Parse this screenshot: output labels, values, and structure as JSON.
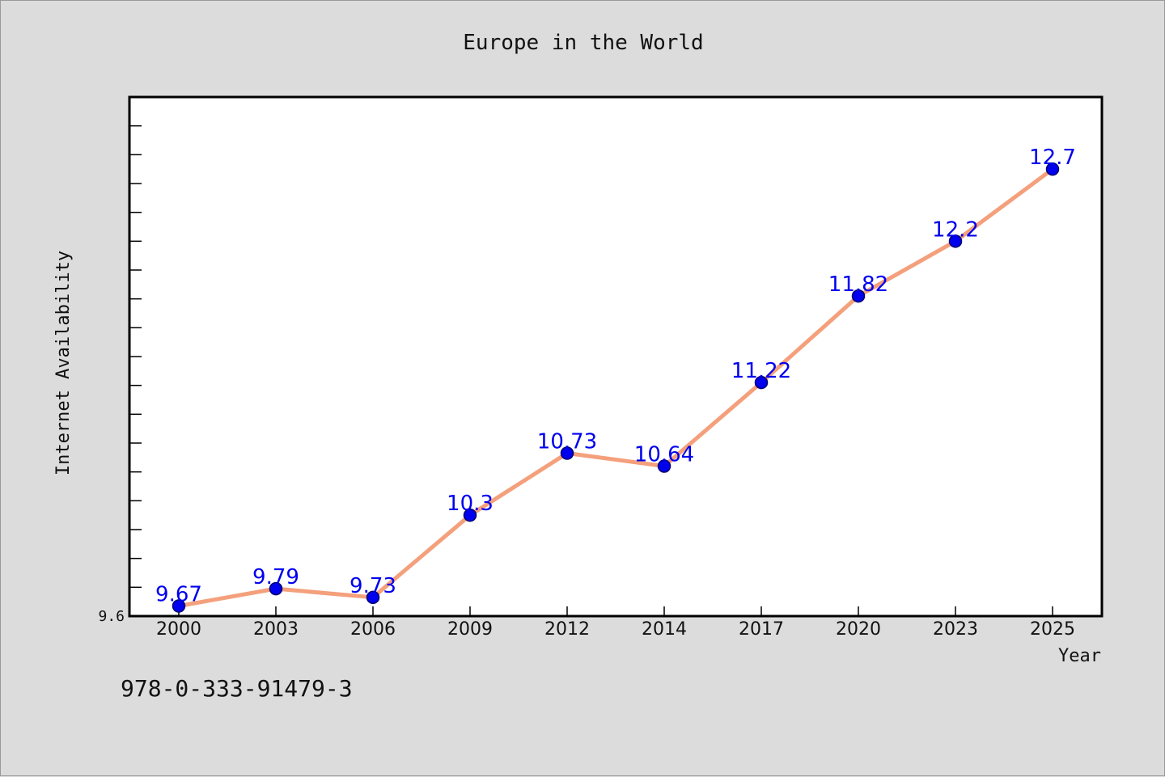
{
  "colors": {
    "line": "#f4a07c",
    "marker": "#0000ee",
    "marker_edge": "#00006e",
    "label": "#0000ee",
    "plot_bg": "#ffffff",
    "page_bg": "#dcdcdc"
  },
  "note": "978-0-333-91479-3",
  "chart_data": {
    "type": "line",
    "title": "Europe in the World",
    "xlabel": "Year",
    "ylabel": "Internet Availability",
    "categories": [
      "2000",
      "2003",
      "2006",
      "2009",
      "2012",
      "2014",
      "2017",
      "2020",
      "2023",
      "2025"
    ],
    "series": [
      {
        "values": [
          9.67,
          9.79,
          9.73,
          10.3,
          10.73,
          10.64,
          11.22,
          11.82,
          12.2,
          12.7
        ],
        "labels": [
          "9.67",
          "9.79",
          "9.73",
          "10.3",
          "10.73",
          "10.64",
          "11.22",
          "11.82",
          "12.2",
          "12.7"
        ]
      }
    ],
    "ylim": [
      9.6,
      13.2
    ],
    "y_tick_labels": [
      "9.6"
    ],
    "grid": false,
    "legend": "none"
  }
}
